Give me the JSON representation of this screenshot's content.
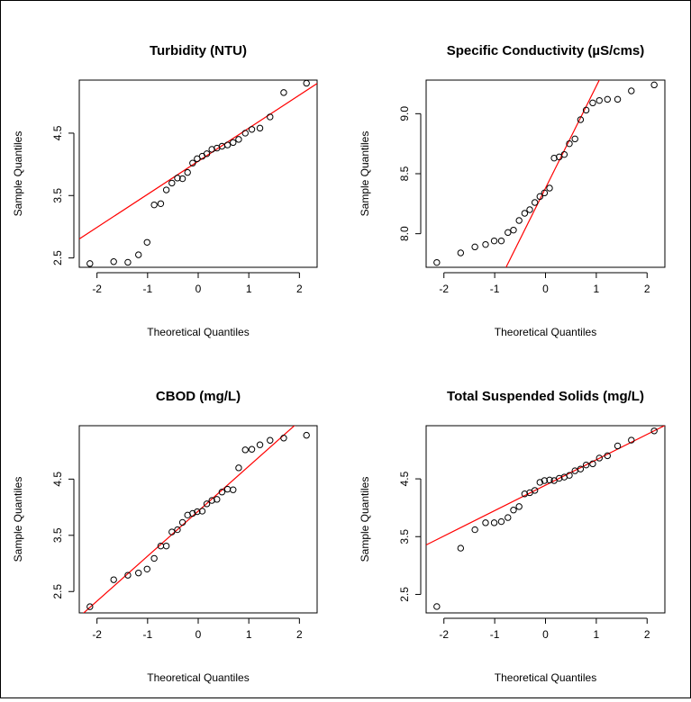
{
  "chart_data": [
    {
      "type": "scatter",
      "title": "Turbidity (NTU)",
      "xlabel": "Theoretical Quantiles",
      "ylabel": "Sample Quantiles",
      "xlim": [
        -2.35,
        2.35
      ],
      "ylim": [
        2.35,
        5.35
      ],
      "xticks": [
        -2,
        -1,
        0,
        1,
        2
      ],
      "xtick_labels": [
        "-2",
        "-1",
        "0",
        "1",
        "2"
      ],
      "yticks": [
        2.5,
        3.5,
        4.5
      ],
      "ytick_labels": [
        "2.5",
        "3.5",
        "4.5"
      ],
      "points": [
        [
          -2.14,
          2.41
        ],
        [
          -1.67,
          2.44
        ],
        [
          -1.39,
          2.43
        ],
        [
          -1.18,
          2.55
        ],
        [
          -1.01,
          2.75
        ],
        [
          -0.87,
          3.35
        ],
        [
          -0.74,
          3.37
        ],
        [
          -0.63,
          3.59
        ],
        [
          -0.52,
          3.7
        ],
        [
          -0.41,
          3.78
        ],
        [
          -0.31,
          3.77
        ],
        [
          -0.21,
          3.87
        ],
        [
          -0.11,
          4.02
        ],
        [
          -0.02,
          4.09
        ],
        [
          0.08,
          4.13
        ],
        [
          0.17,
          4.17
        ],
        [
          0.27,
          4.24
        ],
        [
          0.37,
          4.26
        ],
        [
          0.47,
          4.29
        ],
        [
          0.58,
          4.31
        ],
        [
          0.69,
          4.35
        ],
        [
          0.8,
          4.4
        ],
        [
          0.93,
          4.5
        ],
        [
          1.06,
          4.56
        ],
        [
          1.22,
          4.58
        ],
        [
          1.42,
          4.76
        ],
        [
          1.69,
          5.15
        ],
        [
          2.14,
          5.3
        ]
      ],
      "line": {
        "intercept": 4.05,
        "slope": 0.53
      }
    },
    {
      "type": "scatter",
      "title": "Specific Conductivity (µS/cms)",
      "xlabel": "Theoretical Quantiles",
      "ylabel": "Sample Quantiles",
      "xlim": [
        -2.35,
        2.35
      ],
      "ylim": [
        7.72,
        9.28
      ],
      "xticks": [
        -2,
        -1,
        0,
        1,
        2
      ],
      "xtick_labels": [
        "-2",
        "-1",
        "0",
        "1",
        "2"
      ],
      "yticks": [
        8.0,
        8.5,
        9.0
      ],
      "ytick_labels": [
        "8.0",
        "8.5",
        "9.0"
      ],
      "points": [
        [
          -2.14,
          7.76
        ],
        [
          -1.67,
          7.84
        ],
        [
          -1.39,
          7.89
        ],
        [
          -1.18,
          7.91
        ],
        [
          -1.01,
          7.94
        ],
        [
          -0.87,
          7.94
        ],
        [
          -0.74,
          8.01
        ],
        [
          -0.63,
          8.03
        ],
        [
          -0.52,
          8.11
        ],
        [
          -0.41,
          8.17
        ],
        [
          -0.31,
          8.2
        ],
        [
          -0.21,
          8.26
        ],
        [
          -0.11,
          8.31
        ],
        [
          -0.02,
          8.34
        ],
        [
          0.08,
          8.38
        ],
        [
          0.17,
          8.63
        ],
        [
          0.27,
          8.64
        ],
        [
          0.37,
          8.66
        ],
        [
          0.47,
          8.75
        ],
        [
          0.58,
          8.79
        ],
        [
          0.69,
          8.95
        ],
        [
          0.8,
          9.03
        ],
        [
          0.93,
          9.09
        ],
        [
          1.06,
          9.11
        ],
        [
          1.22,
          9.12
        ],
        [
          1.42,
          9.12
        ],
        [
          1.69,
          9.19
        ],
        [
          2.14,
          9.24
        ]
      ],
      "line": {
        "intercept": 8.38,
        "slope": 0.85
      }
    },
    {
      "type": "scatter",
      "title": "CBOD (mg/L)",
      "xlabel": "Theoretical Quantiles",
      "ylabel": "Sample Quantiles",
      "xlim": [
        -2.35,
        2.35
      ],
      "ylim": [
        2.12,
        5.45
      ],
      "xticks": [
        -2,
        -1,
        0,
        1,
        2
      ],
      "xtick_labels": [
        "-2",
        "-1",
        "0",
        "1",
        "2"
      ],
      "yticks": [
        2.5,
        3.5,
        4.5
      ],
      "ytick_labels": [
        "2.5",
        "3.5",
        "4.5"
      ],
      "points": [
        [
          -2.14,
          2.23
        ],
        [
          -1.67,
          2.71
        ],
        [
          -1.39,
          2.79
        ],
        [
          -1.18,
          2.83
        ],
        [
          -1.01,
          2.9
        ],
        [
          -0.87,
          3.09
        ],
        [
          -0.74,
          3.31
        ],
        [
          -0.63,
          3.31
        ],
        [
          -0.52,
          3.56
        ],
        [
          -0.41,
          3.6
        ],
        [
          -0.31,
          3.73
        ],
        [
          -0.21,
          3.86
        ],
        [
          -0.11,
          3.89
        ],
        [
          -0.02,
          3.92
        ],
        [
          0.08,
          3.93
        ],
        [
          0.17,
          4.06
        ],
        [
          0.27,
          4.12
        ],
        [
          0.37,
          4.14
        ],
        [
          0.47,
          4.27
        ],
        [
          0.58,
          4.32
        ],
        [
          0.69,
          4.31
        ],
        [
          0.8,
          4.7
        ],
        [
          0.93,
          5.02
        ],
        [
          1.06,
          5.03
        ],
        [
          1.22,
          5.11
        ],
        [
          1.42,
          5.19
        ],
        [
          1.69,
          5.23
        ],
        [
          2.14,
          5.28
        ]
      ],
      "line": {
        "intercept": 3.93,
        "slope": 0.8
      }
    },
    {
      "type": "scatter",
      "title": "Total Suspended Solids (mg/L)",
      "xlabel": "Theoretical Quantiles",
      "ylabel": "Sample Quantiles",
      "xlim": [
        -2.35,
        2.35
      ],
      "ylim": [
        2.18,
        5.42
      ],
      "xticks": [
        -2,
        -1,
        0,
        1,
        2
      ],
      "xtick_labels": [
        "-2",
        "-1",
        "0",
        "1",
        "2"
      ],
      "yticks": [
        2.5,
        3.5,
        4.5
      ],
      "ytick_labels": [
        "2.5",
        "3.5",
        "4.5"
      ],
      "points": [
        [
          -2.14,
          2.29
        ],
        [
          -1.67,
          3.3
        ],
        [
          -1.39,
          3.62
        ],
        [
          -1.18,
          3.74
        ],
        [
          -1.01,
          3.74
        ],
        [
          -0.87,
          3.76
        ],
        [
          -0.74,
          3.83
        ],
        [
          -0.63,
          3.96
        ],
        [
          -0.52,
          4.02
        ],
        [
          -0.41,
          4.24
        ],
        [
          -0.31,
          4.26
        ],
        [
          -0.21,
          4.3
        ],
        [
          -0.11,
          4.44
        ],
        [
          -0.02,
          4.47
        ],
        [
          0.08,
          4.48
        ],
        [
          0.17,
          4.47
        ],
        [
          0.27,
          4.51
        ],
        [
          0.37,
          4.53
        ],
        [
          0.47,
          4.56
        ],
        [
          0.58,
          4.64
        ],
        [
          0.69,
          4.67
        ],
        [
          0.8,
          4.74
        ],
        [
          0.93,
          4.76
        ],
        [
          1.06,
          4.86
        ],
        [
          1.22,
          4.9
        ],
        [
          1.42,
          5.07
        ],
        [
          1.69,
          5.17
        ],
        [
          2.14,
          5.33
        ]
      ],
      "line": {
        "intercept": 4.39,
        "slope": 0.44
      }
    }
  ],
  "colors": {
    "fit_line": "#ff0000",
    "points": "#000000"
  }
}
